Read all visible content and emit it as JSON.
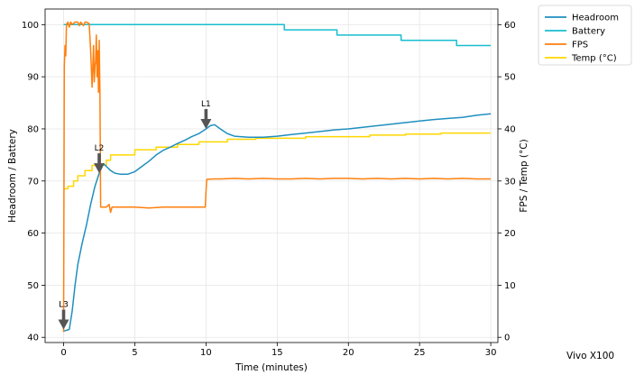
{
  "chart_data": {
    "type": "line",
    "xlabel": "Time (minutes)",
    "ylabel_left": "Headroom / Battery",
    "ylabel_right": "FPS / Temp (°C)",
    "xlim": [
      -1.3,
      30.5
    ],
    "ylim_left": [
      39,
      103
    ],
    "ylim_right": [
      -1,
      63
    ],
    "x_ticks": [
      0,
      5,
      10,
      15,
      20,
      25,
      30
    ],
    "y_ticks_left": [
      40,
      50,
      60,
      70,
      80,
      90,
      100
    ],
    "y_ticks_right": [
      0,
      10,
      20,
      30,
      40,
      50,
      60
    ],
    "grid": true,
    "legend_position": "outside-top-right",
    "series": [
      {
        "name": "Headroom",
        "axis": "left",
        "color": "#1f8fc0",
        "x": [
          0,
          0.4,
          0.6,
          0.8,
          1.0,
          1.3,
          1.6,
          1.9,
          2.2,
          2.5,
          2.8,
          3.0,
          3.3,
          3.6,
          4.0,
          4.5,
          5.0,
          5.5,
          6.0,
          6.5,
          7.0,
          7.5,
          8.0,
          8.5,
          9.0,
          9.5,
          10.0,
          10.3,
          10.6,
          11.0,
          11.5,
          12.0,
          13.0,
          14.0,
          15.0,
          16.0,
          17.0,
          18.0,
          19.0,
          20.0,
          21.0,
          22.0,
          23.0,
          24.0,
          25.0,
          26.0,
          27.0,
          28.0,
          29.0,
          30.0
        ],
        "y": [
          41.2,
          41.5,
          45,
          50,
          54,
          58,
          61.5,
          65.5,
          69,
          71.5,
          73.3,
          72.8,
          72,
          71.5,
          71.3,
          71.3,
          71.8,
          72.8,
          73.8,
          75,
          75.9,
          76.5,
          77.2,
          77.8,
          78.5,
          79.1,
          80,
          80.6,
          80.8,
          80,
          79.1,
          78.6,
          78.4,
          78.4,
          78.6,
          78.9,
          79.2,
          79.5,
          79.8,
          80,
          80.3,
          80.6,
          80.9,
          81.2,
          81.5,
          81.8,
          82,
          82.2,
          82.6,
          82.9
        ]
      },
      {
        "name": "Battery",
        "axis": "left",
        "color": "#17becf",
        "x": [
          0,
          15.5,
          15.5,
          19.2,
          19.2,
          23.7,
          23.7,
          27.6,
          27.6,
          30
        ],
        "y": [
          100,
          100,
          99,
          99,
          98,
          98,
          97,
          97,
          96,
          96
        ]
      },
      {
        "name": "FPS",
        "axis": "right",
        "color": "#ff7f0e",
        "x": [
          0,
          0.05,
          0.1,
          0.15,
          0.2,
          0.3,
          0.4,
          0.5,
          0.6,
          0.8,
          1.0,
          1.1,
          1.2,
          1.4,
          1.5,
          1.6,
          1.8,
          1.9,
          2.0,
          2.05,
          2.1,
          2.15,
          2.2,
          2.25,
          2.3,
          2.35,
          2.4,
          2.45,
          2.5,
          2.55,
          2.6,
          3.0,
          3.2,
          3.3,
          3.4,
          4.0,
          5.0,
          6.0,
          7.0,
          8.0,
          9.0,
          9.5,
          9.9,
          9.95,
          10.0,
          10.05,
          10.5,
          11,
          12,
          13,
          14,
          15,
          16,
          17,
          18,
          19,
          20,
          21,
          22,
          23,
          24,
          25,
          26,
          27,
          28,
          29,
          30
        ],
        "y": [
          1,
          52,
          56,
          54,
          60,
          60.5,
          59.5,
          60.5,
          60,
          60.5,
          60.5,
          59.8,
          60.5,
          59.8,
          60.5,
          60.5,
          60.2,
          55,
          48,
          52,
          56,
          49,
          52,
          53,
          58,
          50,
          55,
          47,
          57,
          47,
          25,
          25,
          25.5,
          24,
          25,
          25,
          25,
          24.8,
          25,
          25,
          25,
          25,
          25,
          25,
          28,
          30.3,
          30.4,
          30.4,
          30.5,
          30.4,
          30.5,
          30.4,
          30.4,
          30.5,
          30.4,
          30.5,
          30.5,
          30.4,
          30.5,
          30.4,
          30.5,
          30.4,
          30.5,
          30.4,
          30.5,
          30.4,
          30.4
        ]
      },
      {
        "name": "Temp (°C)",
        "axis": "right",
        "color": "#ffd700",
        "x": [
          0,
          0.3,
          0.3,
          0.7,
          0.7,
          1.0,
          1.0,
          1.5,
          1.5,
          2.0,
          2.0,
          3.0,
          3.0,
          3.3,
          3.3,
          5.0,
          5.0,
          6.5,
          6.5,
          8.0,
          8.0,
          9.5,
          9.5,
          11.5,
          11.5,
          13.5,
          13.5,
          17.0,
          17.0,
          21.5,
          21.5,
          24.0,
          24.0,
          26.5,
          26.5,
          30.0
        ],
        "y": [
          28.5,
          28.5,
          29,
          29,
          30,
          30,
          31,
          31,
          32,
          32,
          33,
          33,
          34,
          34,
          35,
          35,
          36,
          36,
          36.5,
          36.5,
          37,
          37,
          37.5,
          37.5,
          38,
          38,
          38.2,
          38.2,
          38.5,
          38.5,
          38.8,
          38.8,
          39,
          39,
          39.2,
          39.2
        ]
      }
    ],
    "annotations": [
      {
        "label": "L3",
        "x": 0,
        "axis": "left",
        "y": 41.5
      },
      {
        "label": "L2",
        "x": 2.5,
        "axis": "left",
        "y": 71.5
      },
      {
        "label": "L1",
        "x": 10.0,
        "axis": "left",
        "y": 80.0
      }
    ]
  },
  "footer": {
    "device": "Vivo X100"
  }
}
